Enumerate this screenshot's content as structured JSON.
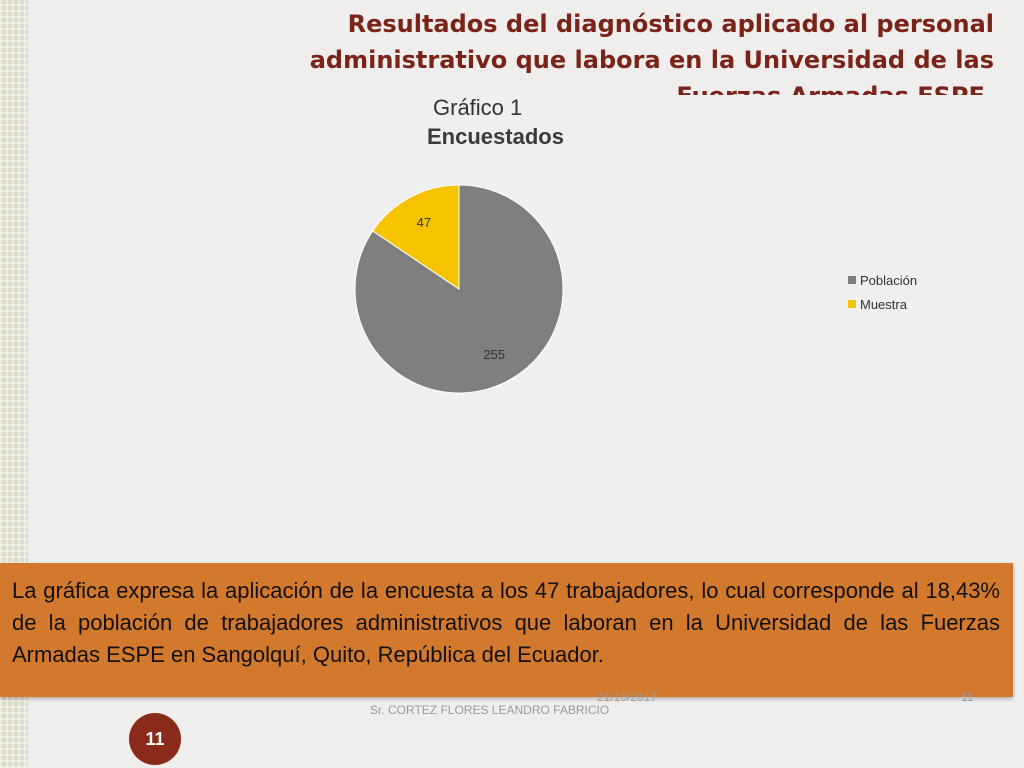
{
  "slide": {
    "title_lines": [
      "Resultados del diagnóstico aplicado al personal",
      "administrativo que labora en la Universidad de las",
      "Fuerzas Armadas ESPE."
    ]
  },
  "chart_data": {
    "type": "pie",
    "subtitle": "Gráfico 1",
    "title": "Encuestados",
    "categories": [
      "Población",
      "Muestra"
    ],
    "values": [
      255,
      47
    ],
    "data_labels": [
      "255",
      "47"
    ],
    "colors": [
      "#7f7f7f",
      "#f5c300"
    ],
    "legend_position": "right"
  },
  "caption": {
    "text": "La gráfica expresa la aplicación de la encuesta a los 47 trabajadores, lo cual corresponde al 18,43% de la población de trabajadores administrativos que laboran en la Universidad de las Fuerzas Armadas ESPE en Sangolquí, Quito, República del Ecuador."
  },
  "footer": {
    "date": "21/10/2017",
    "author": "Sr. CORTEZ FLORES LEANDRO FABRICIO",
    "page_number_small": "11",
    "page_badge": "11"
  }
}
